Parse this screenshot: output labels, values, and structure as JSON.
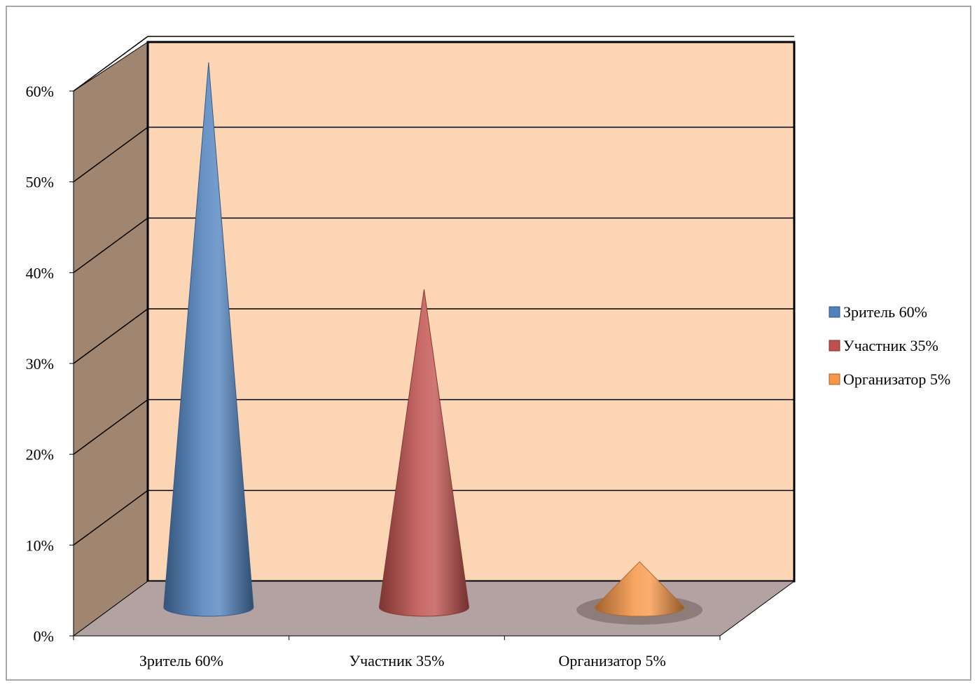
{
  "chart_data": {
    "type": "bar",
    "bar_shape": "cone",
    "three_d": true,
    "categories": [
      "Зритель 60%",
      "Участник 35%",
      "Организатор 5%"
    ],
    "series": [
      {
        "values": [
          60,
          35,
          5
        ]
      }
    ],
    "point_colors": [
      "#4f81bd",
      "#c0504d",
      "#f79646"
    ],
    "ylim": [
      0,
      60
    ],
    "y_ticks": [
      "0%",
      "10%",
      "20%",
      "30%",
      "40%",
      "50%",
      "60%"
    ],
    "y_unit": "%",
    "grid": true,
    "legend": {
      "position": "right",
      "entries": [
        "Зритель 60%",
        "Участник 35%",
        "Организатор 5%"
      ]
    },
    "colors": {
      "back_wall": "#fcd5b5",
      "side_wall": "#a08570",
      "floor": "#b2a2a2"
    }
  }
}
